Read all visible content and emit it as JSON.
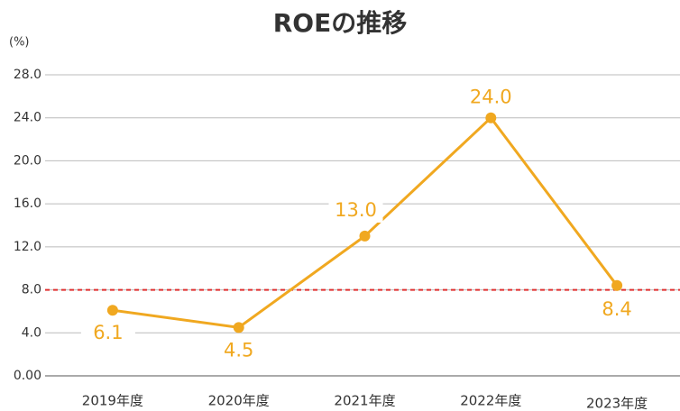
{
  "chart_data": {
    "type": "line",
    "title": "ROEの推移",
    "y_unit": "(%)",
    "categories": [
      "2019年度",
      "2020年度",
      "2021年度",
      "2022年度",
      "2023年度"
    ],
    "series": [
      {
        "color": "#f0a820",
        "values": [
          6.1,
          4.5,
          13,
          24,
          8.4
        ],
        "value_labels": [
          "6.1",
          "4.5",
          "13.0",
          "24.0",
          "8.4"
        ]
      }
    ],
    "ylim": [
      0,
      28
    ],
    "yticks": [
      {
        "value": 0,
        "label": "0.00"
      },
      {
        "value": 4,
        "label": "4.0"
      },
      {
        "value": 8,
        "label": "8.0"
      },
      {
        "value": 12,
        "label": "12.0"
      },
      {
        "value": 16,
        "label": "16.0"
      },
      {
        "value": 20,
        "label": "20.0"
      },
      {
        "value": 24,
        "label": "24.0"
      },
      {
        "value": 28,
        "label": "28.0"
      }
    ],
    "grid": true,
    "reference_line": {
      "value": 8,
      "color": "#e03030"
    }
  }
}
